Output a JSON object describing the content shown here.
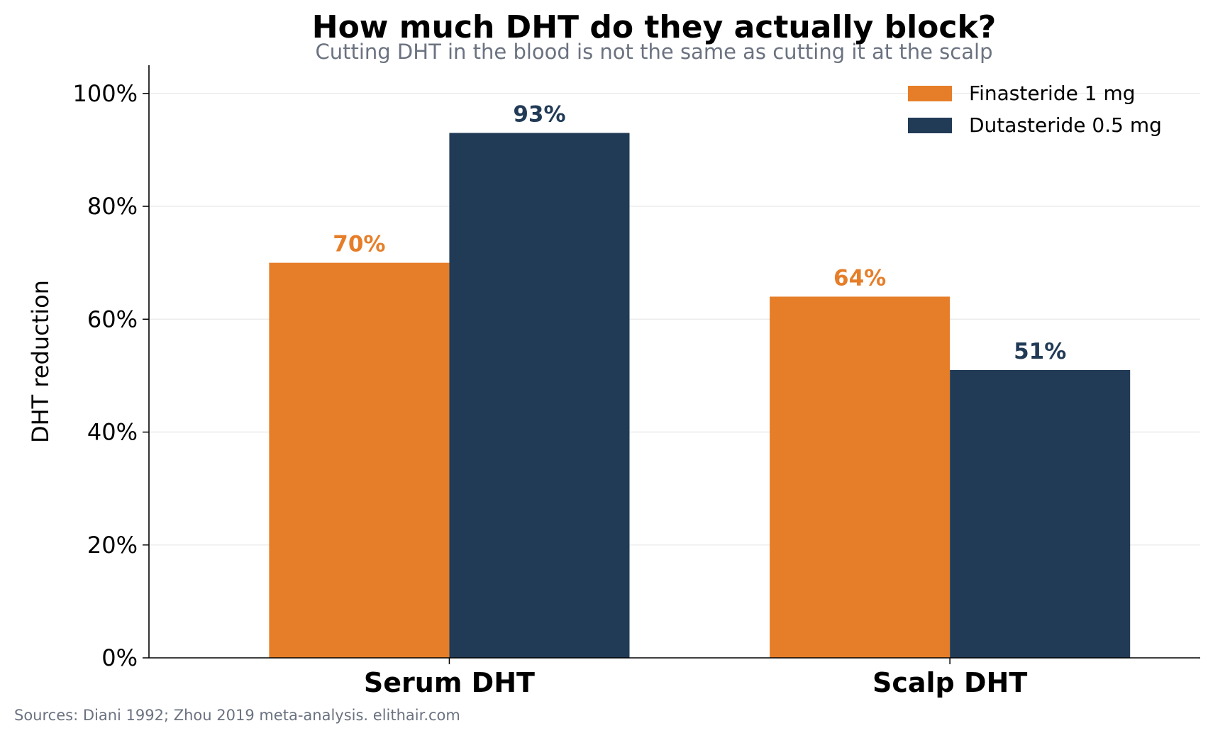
{
  "chart_data": {
    "type": "bar",
    "title": "How much DHT do they actually block?",
    "subtitle": "Cutting DHT in the blood is not the same as cutting it at the scalp",
    "xlabel": "",
    "ylabel": "DHT reduction",
    "categories": [
      "Serum DHT",
      "Scalp DHT"
    ],
    "series": [
      {
        "name": "Finasteride 1 mg",
        "color": "#E67E29",
        "values": [
          70,
          64
        ],
        "labels": [
          "70%",
          "64%"
        ]
      },
      {
        "name": "Dutasteride 0.5 mg",
        "color": "#213A56",
        "values": [
          93,
          51
        ],
        "labels": [
          "93%",
          "51%"
        ]
      }
    ],
    "ylim": [
      0,
      105
    ],
    "yticks": [
      0,
      20,
      40,
      60,
      80,
      100
    ],
    "ytick_labels": [
      "0%",
      "20%",
      "40%",
      "60%",
      "80%",
      "100%"
    ],
    "grid": "horizontal",
    "legend_position": "top-right",
    "source": "Sources: Diani 1992; Zhou 2019 meta-analysis. elithair.com"
  }
}
